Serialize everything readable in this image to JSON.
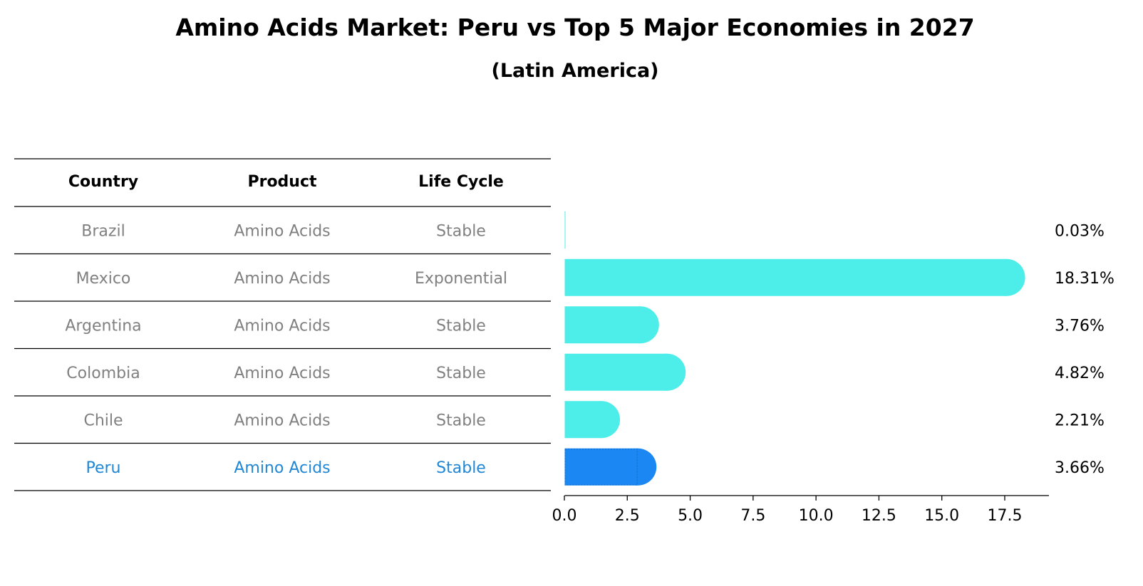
{
  "title": "Amino Acids Market: Peru vs Top 5 Major Economies in 2027",
  "subtitle": "(Latin America)",
  "table": {
    "columns": [
      "Country",
      "Product",
      "Life Cycle"
    ],
    "rows": [
      {
        "country": "Brazil",
        "product": "Amino Acids",
        "life_cycle": "Stable",
        "highlight": false
      },
      {
        "country": "Mexico",
        "product": "Amino Acids",
        "life_cycle": "Exponential",
        "highlight": false
      },
      {
        "country": "Argentina",
        "product": "Amino Acids",
        "life_cycle": "Stable",
        "highlight": false
      },
      {
        "country": "Colombia",
        "product": "Amino Acids",
        "life_cycle": "Stable",
        "highlight": false
      },
      {
        "country": "Chile",
        "product": "Amino Acids",
        "life_cycle": "Stable",
        "highlight": false
      },
      {
        "country": "Peru",
        "product": "Amino Acids",
        "life_cycle": "Stable",
        "highlight": true
      }
    ]
  },
  "colors": {
    "bar": "#4deee9",
    "highlight_bar": "#1a87f2",
    "muted_text": "#808080",
    "highlight_text": "#1f87d6"
  },
  "chart_data": {
    "type": "bar",
    "orientation": "horizontal",
    "categories": [
      "Brazil",
      "Mexico",
      "Argentina",
      "Colombia",
      "Chile",
      "Peru"
    ],
    "values": [
      0.03,
      18.31,
      3.76,
      4.82,
      2.21,
      3.66
    ],
    "value_labels": [
      "0.03%",
      "18.31%",
      "3.76%",
      "4.82%",
      "2.21%",
      "3.66%"
    ],
    "xlim": [
      0,
      19.2
    ],
    "xticks": [
      0.0,
      2.5,
      5.0,
      7.5,
      10.0,
      12.5,
      15.0,
      17.5
    ],
    "xtick_labels": [
      "0.0",
      "2.5",
      "5.0",
      "7.5",
      "10.0",
      "12.5",
      "15.0",
      "17.5"
    ],
    "highlight_category": "Peru",
    "grid": false,
    "legend": "none"
  }
}
